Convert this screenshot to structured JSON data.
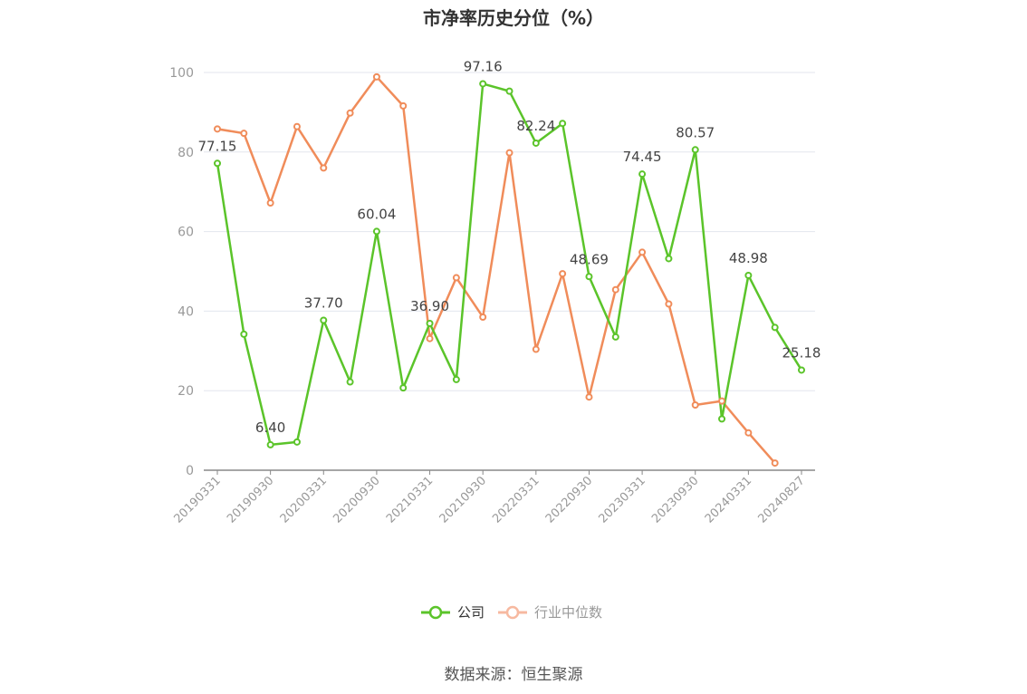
{
  "chart_data": {
    "type": "line",
    "title": "市净率历史分位（%）",
    "xlabel": "",
    "ylabel": "",
    "ylim": [
      0,
      100
    ],
    "yticks": [
      0,
      20,
      40,
      60,
      80,
      100
    ],
    "grid": true,
    "legend_position": "bottom-center",
    "x_tick_labels": [
      "20190331",
      "20190930",
      "20200331",
      "20200930",
      "20210331",
      "20210930",
      "20220331",
      "20220930",
      "20230331",
      "20230930",
      "20240331",
      "20240827"
    ],
    "x": [
      "20190331",
      "20190630",
      "20190930",
      "20191231",
      "20200331",
      "20200630",
      "20200930",
      "20201231",
      "20210331",
      "20210630",
      "20210930",
      "20211231",
      "20220331",
      "20220630",
      "20220930",
      "20221231",
      "20230331",
      "20230630",
      "20230930",
      "20231231",
      "20240331",
      "20240630",
      "20240827"
    ],
    "series": [
      {
        "name": "公司",
        "color": "#5bc42a",
        "values": [
          77.15,
          34.2,
          6.4,
          7.1,
          37.7,
          22.2,
          60.04,
          20.7,
          36.9,
          22.8,
          97.16,
          95.3,
          82.24,
          87.2,
          48.69,
          33.5,
          74.45,
          53.2,
          80.57,
          12.9,
          48.98,
          35.9,
          25.18
        ]
      },
      {
        "name": "行业中位数",
        "color": "#f08c5a",
        "values": [
          85.8,
          84.7,
          67.2,
          86.4,
          76.0,
          89.8,
          98.9,
          91.6,
          33.1,
          48.4,
          38.5,
          79.8,
          30.4,
          49.4,
          18.4,
          45.4,
          54.8,
          41.8,
          16.4,
          17.4,
          9.4,
          1.8,
          null
        ]
      }
    ],
    "data_labels": [
      {
        "series": 0,
        "index": 0,
        "text": "77.15"
      },
      {
        "series": 0,
        "index": 2,
        "text": "6.40"
      },
      {
        "series": 0,
        "index": 4,
        "text": "37.70"
      },
      {
        "series": 0,
        "index": 6,
        "text": "60.04"
      },
      {
        "series": 0,
        "index": 8,
        "text": "36.90"
      },
      {
        "series": 0,
        "index": 10,
        "text": "97.16"
      },
      {
        "series": 0,
        "index": 12,
        "text": "82.24"
      },
      {
        "series": 0,
        "index": 14,
        "text": "48.69"
      },
      {
        "series": 0,
        "index": 16,
        "text": "74.45"
      },
      {
        "series": 0,
        "index": 18,
        "text": "80.57"
      },
      {
        "series": 0,
        "index": 20,
        "text": "48.98"
      },
      {
        "series": 0,
        "index": 22,
        "text": "25.18"
      }
    ],
    "legend": [
      {
        "label": "公司",
        "color": "#5bc42a",
        "active": true
      },
      {
        "label": "行业中位数",
        "color": "#f7b9a0",
        "active": false
      }
    ]
  },
  "source": "数据来源：恒生聚源"
}
